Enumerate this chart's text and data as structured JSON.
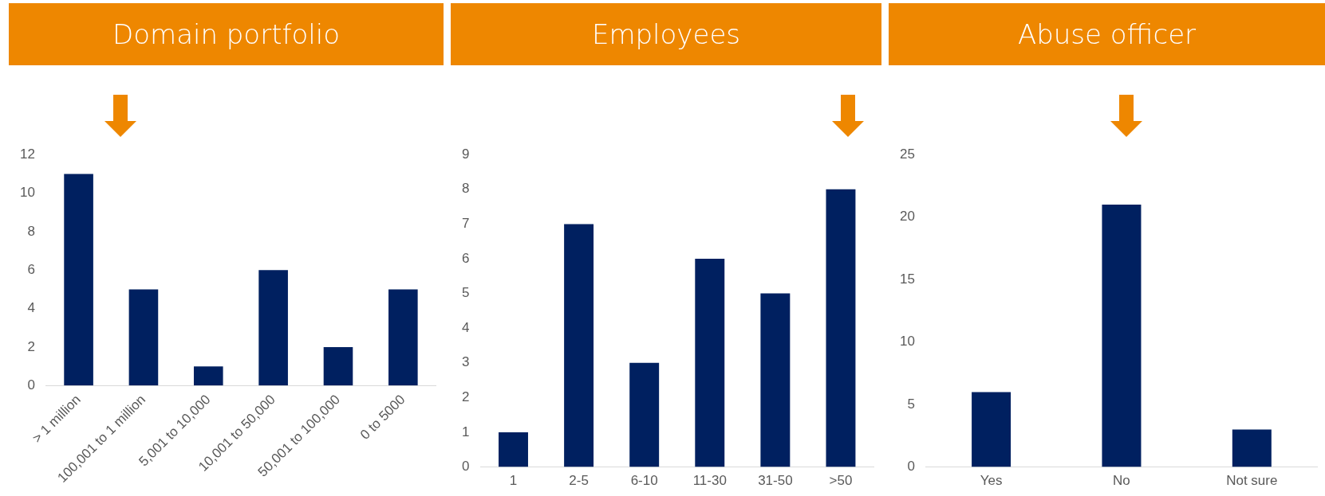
{
  "chart_data": [
    {
      "type": "bar",
      "title": "Domain portfolio",
      "categories": [
        "> 1 million",
        "100,001 to 1 million",
        "5,001 to 10,000",
        "10,001 to 50,000",
        "50,001 to 100,000",
        "0 to 5000"
      ],
      "values": [
        11,
        5,
        1,
        6,
        2,
        5
      ],
      "color": "#002060",
      "ylim": [
        0,
        12
      ],
      "yticks": [
        0,
        2,
        4,
        6,
        8,
        10,
        12
      ],
      "grid": false
    },
    {
      "type": "bar",
      "title": "Employees",
      "categories": [
        "1",
        "2-5",
        "6-10",
        "11-30",
        "31-50",
        ">50"
      ],
      "values": [
        1,
        7,
        3,
        6,
        5,
        8
      ],
      "color": "#002060",
      "ylim": [
        0,
        9
      ],
      "yticks": [
        0,
        1,
        2,
        3,
        4,
        5,
        6,
        7,
        8,
        9
      ],
      "grid": false
    },
    {
      "type": "bar",
      "title": "Abuse officer",
      "categories": [
        "Yes",
        "No",
        "Not sure"
      ],
      "values": [
        6,
        21,
        3
      ],
      "color": "#002060",
      "ylim": [
        0,
        25
      ],
      "yticks": [
        0,
        5,
        10,
        15,
        20,
        25
      ],
      "grid": false
    }
  ]
}
